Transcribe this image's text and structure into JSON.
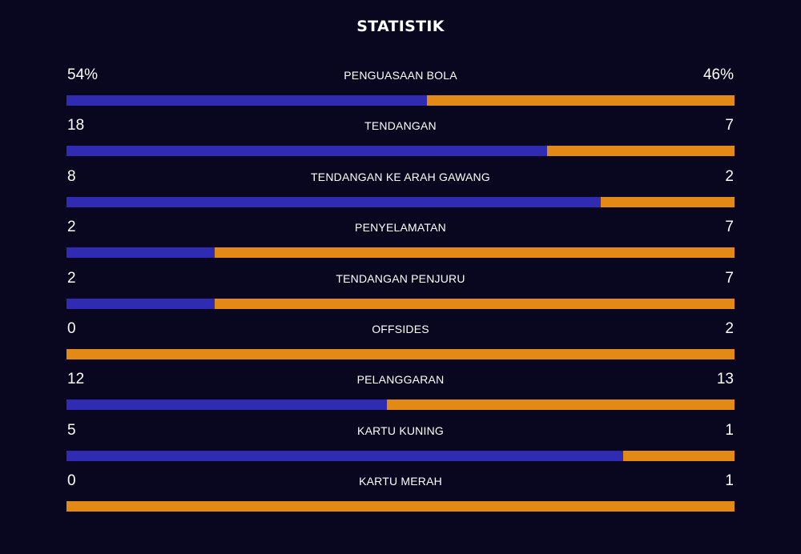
{
  "header": {
    "title": "STATISTIK"
  },
  "colors": {
    "home": "#2f2bb3",
    "away": "#e38a16",
    "background": "#09061f"
  },
  "stats": [
    {
      "label": "PENGUASAAN BOLA",
      "home": "54%",
      "away": "46%",
      "home_share": 0.54
    },
    {
      "label": "TENDANGAN",
      "home": "18",
      "away": "7",
      "home_share": 0.72
    },
    {
      "label": "TENDANGAN KE ARAH GAWANG",
      "home": "8",
      "away": "2",
      "home_share": 0.8
    },
    {
      "label": "PENYELAMATAN",
      "home": "2",
      "away": "7",
      "home_share": 0.2222
    },
    {
      "label": "TENDANGAN PENJURU",
      "home": "2",
      "away": "7",
      "home_share": 0.2222
    },
    {
      "label": "OFFSIDES",
      "home": "0",
      "away": "2",
      "home_share": 0
    },
    {
      "label": "PELANGGARAN",
      "home": "12",
      "away": "13",
      "home_share": 0.48
    },
    {
      "label": "KARTU KUNING",
      "home": "5",
      "away": "1",
      "home_share": 0.8333
    },
    {
      "label": "KARTU MERAH",
      "home": "0",
      "away": "1",
      "home_share": 0
    }
  ]
}
